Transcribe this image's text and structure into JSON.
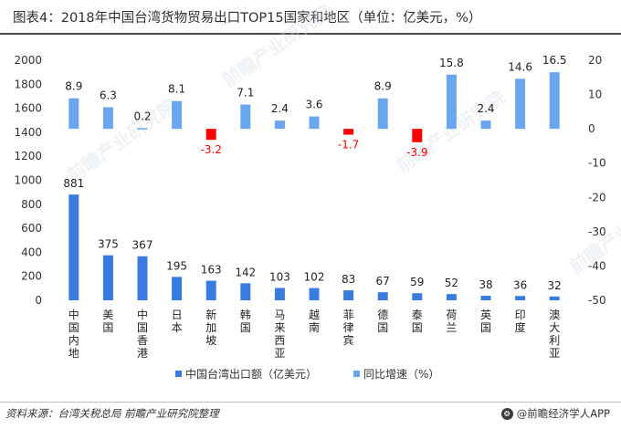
{
  "title": "图表4：2018年中国台湾货物贸易出口TOP15国家和地区（单位：亿美元，%）",
  "source": "资料来源：台湾关税总局 前瞻产业研究院整理",
  "brand": "@前瞻经济学人APP",
  "brand_icon": "qianzhan-logo-icon",
  "watermark": "前瞻产业研究院",
  "chart_data": {
    "type": "bar",
    "categories": [
      "中国内地",
      "美国",
      "中国香港",
      "日本",
      "新加坡",
      "韩国",
      "马来西亚",
      "越南",
      "菲律宾",
      "德国",
      "泰国",
      "荷兰",
      "英国",
      "印度",
      "澳大利亚"
    ],
    "series": [
      {
        "name": "中国台湾出口额（亿美元）",
        "axis": "left",
        "color": "#3a7be0",
        "values": [
          881,
          375,
          367,
          195,
          163,
          142,
          103,
          102,
          83,
          67,
          59,
          52,
          38,
          36,
          32
        ]
      },
      {
        "name": "同比增速（%）",
        "axis": "right",
        "color": "#6aa6ee",
        "negative_color": "#ff0000",
        "values": [
          8.9,
          6.3,
          0.2,
          8.1,
          -3.2,
          7.1,
          2.4,
          3.6,
          -1.7,
          8.9,
          -3.9,
          15.8,
          2.4,
          14.6,
          16.5
        ]
      }
    ],
    "y_left": {
      "min": 0,
      "max": 2000,
      "ticks": [
        0,
        200,
        400,
        600,
        800,
        1000,
        1200,
        1400,
        1600,
        1800,
        2000
      ]
    },
    "y_right": {
      "min": -50,
      "max": 20,
      "ticks": [
        -50,
        -40,
        -30,
        -20,
        -10,
        0,
        10,
        20
      ]
    },
    "legend_position": "bottom-center",
    "grid": false
  }
}
